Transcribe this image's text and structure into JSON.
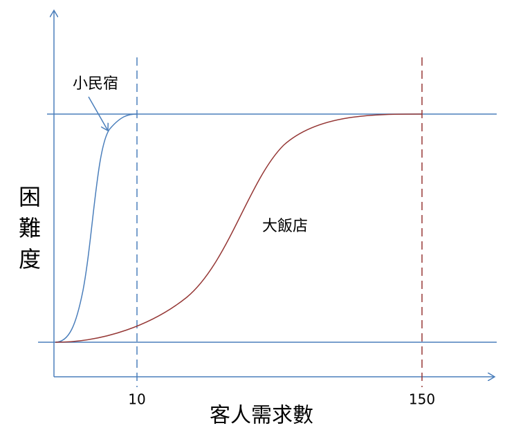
{
  "axis_labels": {
    "y": [
      "困",
      "難",
      "度"
    ],
    "x": "客人需求數"
  },
  "ticks": [
    "10",
    "150"
  ],
  "annotations": {
    "small": "小民宿",
    "large": "大飯店"
  }
}
